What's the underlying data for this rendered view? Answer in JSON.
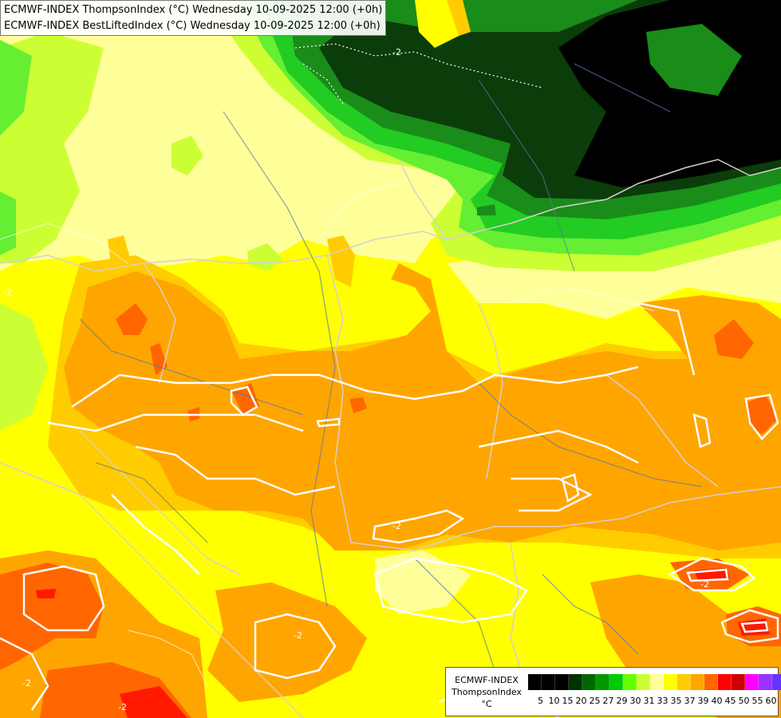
{
  "title": {
    "line1": "ECMWF-INDEX ThompsonIndex (°C) Wednesday 10-09-2025 12:00 (+0h)",
    "line2": "ECMWF-INDEX BestLiftedIndex (°C) Wednesday 10-09-2025 12:00 (+0h)"
  },
  "legend": {
    "model": "ECMWF-INDEX",
    "field": "ThompsonIndex",
    "unit": "°C",
    "ticks": [
      "5",
      "10",
      "15",
      "20",
      "25",
      "27",
      "29",
      "30",
      "31",
      "33",
      "35",
      "37",
      "39",
      "40",
      "45",
      "50",
      "55",
      "60"
    ],
    "colors": [
      "#000000",
      "#000000",
      "#000000",
      "#003300",
      "#006600",
      "#009900",
      "#00cc00",
      "#66ff00",
      "#ccff33",
      "#ffff99",
      "#ffff00",
      "#ffcc00",
      "#ffa500",
      "#ff6600",
      "#ff0000",
      "#cc0000",
      "#ff00ff",
      "#9933ff",
      "#6633ff",
      "#3300ff",
      "#0000ff"
    ]
  },
  "contour_labels": [
    "-2",
    "-2",
    "-2",
    "-2",
    "-2",
    "-2",
    "-2"
  ],
  "colors": {
    "black": "#000000",
    "darkgreen": "#0a3d0a",
    "green": "#1a8c1a",
    "brightgreen": "#22cc22",
    "lightgreen": "#66ee33",
    "yellowgreen": "#bbff33",
    "paleyellow": "#ffff99",
    "yellow": "#ffff00",
    "gold": "#ffcc00",
    "orange": "#ffa500",
    "darkorange": "#ff6600",
    "red": "#ff1a00",
    "border": "#e0e0e0",
    "river": "#5577aa"
  }
}
